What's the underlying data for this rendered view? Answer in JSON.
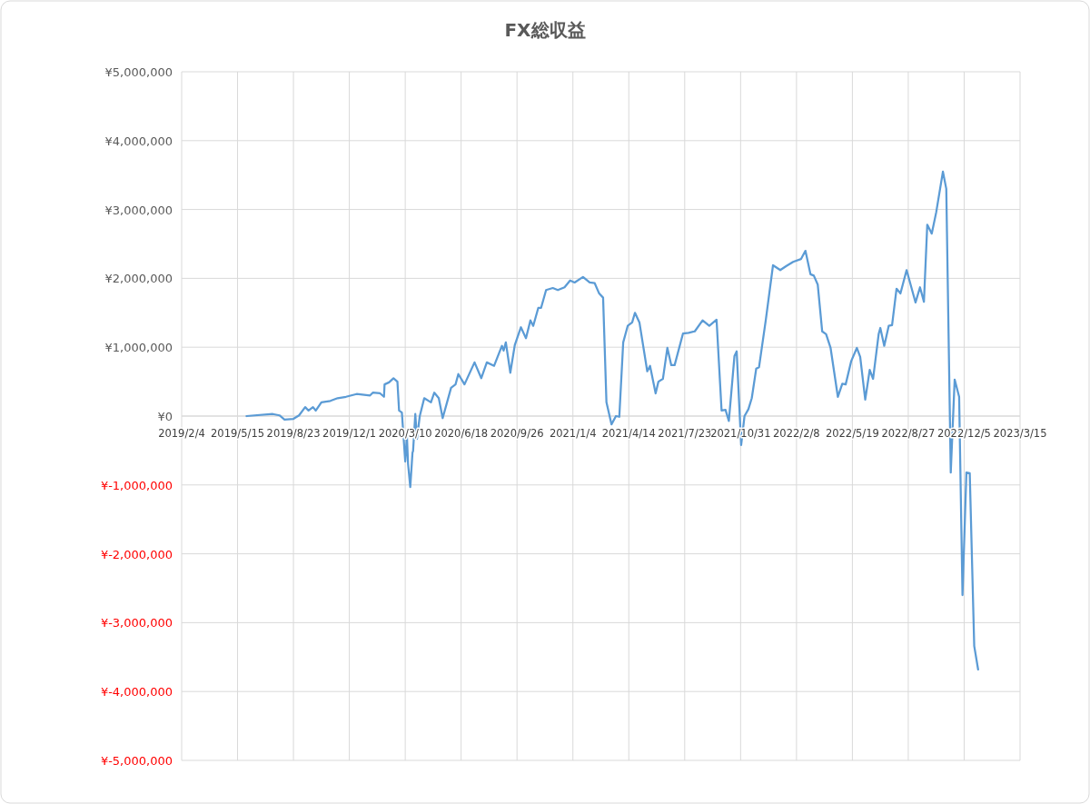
{
  "chart_data": {
    "type": "line",
    "title": "FX総収益",
    "grid": true,
    "marker": "none",
    "line_style": "solid",
    "xlim": [
      "2019-02-04",
      "2023-03-15"
    ],
    "xticks": [
      {
        "value": "2019-02-04",
        "label": "2019/2/4"
      },
      {
        "value": "2019-05-15",
        "label": "2019/5/15"
      },
      {
        "value": "2019-08-23",
        "label": "2019/8/23"
      },
      {
        "value": "2019-12-01",
        "label": "2019/12/1"
      },
      {
        "value": "2020-03-10",
        "label": "2020/3/10"
      },
      {
        "value": "2020-06-18",
        "label": "2020/6/18"
      },
      {
        "value": "2020-09-26",
        "label": "2020/9/26"
      },
      {
        "value": "2021-01-04",
        "label": "2021/1/4"
      },
      {
        "value": "2021-04-14",
        "label": "2021/4/14"
      },
      {
        "value": "2021-07-23",
        "label": "2021/7/23"
      },
      {
        "value": "2021-10-31",
        "label": "2021/10/31"
      },
      {
        "value": "2022-02-08",
        "label": "2022/2/8"
      },
      {
        "value": "2022-05-19",
        "label": "2022/5/19"
      },
      {
        "value": "2022-08-27",
        "label": "2022/8/27"
      },
      {
        "value": "2022-12-05",
        "label": "2022/12/5"
      },
      {
        "value": "2023-03-15",
        "label": "2023/3/15"
      }
    ],
    "ylim": [
      -5000000,
      5000000
    ],
    "yticks": [
      {
        "value": 5000000,
        "label": "¥5,000,000"
      },
      {
        "value": 4000000,
        "label": "¥4,000,000"
      },
      {
        "value": 3000000,
        "label": "¥3,000,000"
      },
      {
        "value": 2000000,
        "label": "¥2,000,000"
      },
      {
        "value": 1000000,
        "label": "¥1,000,000"
      },
      {
        "value": 0,
        "label": "¥0"
      },
      {
        "value": -1000000,
        "label": "¥-1,000,000"
      },
      {
        "value": -2000000,
        "label": "¥-2,000,000"
      },
      {
        "value": -3000000,
        "label": "¥-3,000,000"
      },
      {
        "value": -4000000,
        "label": "¥-4,000,000"
      },
      {
        "value": -5000000,
        "label": "¥-5,000,000"
      }
    ],
    "x": [
      "2019-05-31",
      "2019-07-17",
      "2019-07-29",
      "2019-08-07",
      "2019-08-23",
      "2019-09-02",
      "2019-09-13",
      "2019-09-19",
      "2019-09-27",
      "2019-10-02",
      "2019-10-12",
      "2019-10-28",
      "2019-11-10",
      "2019-11-25",
      "2019-12-14",
      "2020-01-07",
      "2020-01-12",
      "2020-01-25",
      "2020-02-01",
      "2020-02-02",
      "2020-02-10",
      "2020-02-18",
      "2020-02-25",
      "2020-02-28",
      "2020-03-04",
      "2020-03-10",
      "2020-03-13",
      "2020-03-15",
      "2020-03-19",
      "2020-03-23",
      "2020-03-24",
      "2020-03-28",
      "2020-03-31",
      "2020-04-05",
      "2020-04-13",
      "2020-04-25",
      "2020-05-01",
      "2020-05-09",
      "2020-05-16",
      "2020-05-31",
      "2020-06-08",
      "2020-06-13",
      "2020-06-24",
      "2020-07-12",
      "2020-07-24",
      "2020-08-03",
      "2020-08-16",
      "2020-08-30",
      "2020-09-02",
      "2020-09-06",
      "2020-09-14",
      "2020-09-22",
      "2020-10-03",
      "2020-10-12",
      "2020-10-20",
      "2020-10-25",
      "2020-11-03",
      "2020-11-08",
      "2020-11-17",
      "2020-11-29",
      "2020-12-08",
      "2020-12-20",
      "2020-12-30",
      "2021-01-07",
      "2021-01-22",
      "2021-02-03",
      "2021-02-12",
      "2021-02-20",
      "2021-02-27",
      "2021-03-05",
      "2021-03-14",
      "2021-03-22",
      "2021-03-28",
      "2021-04-04",
      "2021-04-12",
      "2021-04-20",
      "2021-04-25",
      "2021-05-03",
      "2021-05-17",
      "2021-05-22",
      "2021-06-01",
      "2021-06-06",
      "2021-06-14",
      "2021-06-22",
      "2021-06-29",
      "2021-07-05",
      "2021-07-20",
      "2021-07-30",
      "2021-08-10",
      "2021-08-24",
      "2021-09-05",
      "2021-09-18",
      "2021-09-27",
      "2021-10-04",
      "2021-10-10",
      "2021-10-20",
      "2021-10-24",
      "2021-11-01",
      "2021-11-07",
      "2021-11-14",
      "2021-11-20",
      "2021-11-28",
      "2021-12-03",
      "2021-12-15",
      "2021-12-28",
      "2022-01-10",
      "2022-01-21",
      "2022-02-02",
      "2022-02-16",
      "2022-02-24",
      "2022-03-05",
      "2022-03-11",
      "2022-03-18",
      "2022-03-26",
      "2022-04-02",
      "2022-04-10",
      "2022-04-23",
      "2022-05-01",
      "2022-05-07",
      "2022-05-17",
      "2022-05-27",
      "2022-06-02",
      "2022-06-11",
      "2022-06-19",
      "2022-06-25",
      "2022-07-05",
      "2022-07-08",
      "2022-07-15",
      "2022-07-23",
      "2022-07-29",
      "2022-08-06",
      "2022-08-13",
      "2022-08-24",
      "2022-09-09",
      "2022-09-17",
      "2022-09-24",
      "2022-09-30",
      "2022-10-08",
      "2022-10-16",
      "2022-10-28",
      "2022-11-03",
      "2022-11-11",
      "2022-11-18",
      "2022-11-26",
      "2022-12-02",
      "2022-12-09",
      "2022-12-15",
      "2022-12-23",
      "2022-12-30"
    ],
    "series": [
      {
        "color": "#5b9bd5",
        "values": [
          0,
          30000,
          10000,
          -50000,
          -40000,
          10000,
          130000,
          80000,
          130000,
          80000,
          200000,
          220000,
          260000,
          280000,
          320000,
          300000,
          340000,
          330000,
          280000,
          460000,
          490000,
          550000,
          500000,
          80000,
          50000,
          -660000,
          -290000,
          -690000,
          -1030000,
          -530000,
          -510000,
          30000,
          -330000,
          0,
          260000,
          200000,
          340000,
          260000,
          -30000,
          410000,
          460000,
          610000,
          460000,
          780000,
          550000,
          780000,
          730000,
          1020000,
          950000,
          1070000,
          630000,
          1030000,
          1290000,
          1130000,
          1390000,
          1310000,
          1570000,
          1570000,
          1830000,
          1860000,
          1830000,
          1870000,
          1970000,
          1940000,
          2020000,
          1940000,
          1930000,
          1780000,
          1720000,
          200000,
          -120000,
          0,
          -10000,
          1070000,
          1310000,
          1360000,
          1500000,
          1360000,
          650000,
          730000,
          330000,
          500000,
          540000,
          990000,
          740000,
          740000,
          1200000,
          1210000,
          1230000,
          1390000,
          1310000,
          1400000,
          80000,
          90000,
          -70000,
          870000,
          940000,
          -420000,
          0,
          100000,
          260000,
          690000,
          710000,
          1390000,
          2190000,
          2120000,
          2180000,
          2240000,
          2280000,
          2400000,
          2060000,
          2040000,
          1910000,
          1230000,
          1190000,
          990000,
          280000,
          470000,
          460000,
          800000,
          990000,
          860000,
          240000,
          670000,
          540000,
          1190000,
          1280000,
          1020000,
          1310000,
          1320000,
          1850000,
          1780000,
          2120000,
          1650000,
          1870000,
          1660000,
          2780000,
          2650000,
          2960000,
          3550000,
          3300000,
          -820000,
          530000,
          280000,
          -2600000,
          -820000,
          -830000,
          -3340000,
          -3680000
        ]
      }
    ]
  }
}
